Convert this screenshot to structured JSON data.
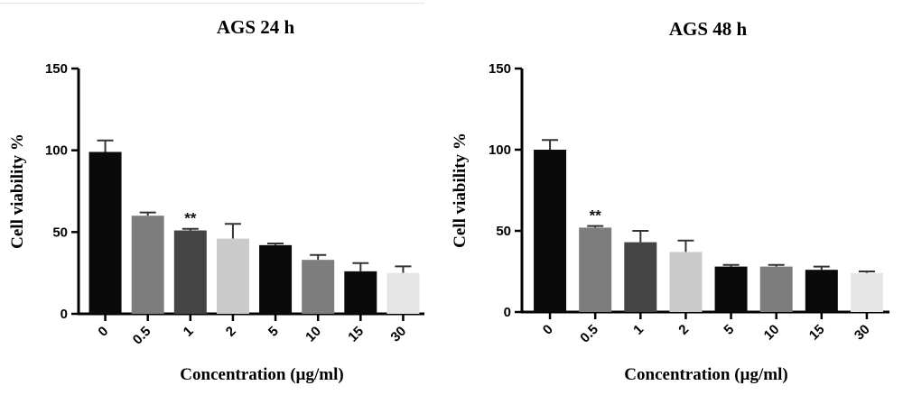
{
  "chart_data": [
    {
      "type": "bar",
      "title": "AGS 24 h",
      "xlabel": "Concentration (µg/ml)",
      "ylabel": "Cell viability %",
      "ylim": [
        0,
        150
      ],
      "yticks": [
        "0",
        "50",
        "100",
        "150"
      ],
      "categories": [
        "0",
        "0.5",
        "1",
        "2",
        "5",
        "10",
        "15",
        "30"
      ],
      "values": [
        99,
        60,
        51,
        46,
        42,
        33,
        26,
        25
      ],
      "errors": [
        7,
        2,
        1,
        9,
        1,
        3,
        5,
        4
      ],
      "colors": [
        "#0a0a0a",
        "#7d7d7d",
        "#444444",
        "#cacaca",
        "#0a0a0a",
        "#7d7d7d",
        "#0a0a0a",
        "#e6e6e6"
      ],
      "annotations": [
        {
          "category": "1",
          "text": "**"
        }
      ]
    },
    {
      "type": "bar",
      "title": "AGS 48 h",
      "xlabel": "Concentration (µg/ml)",
      "ylabel": "Cell viability %",
      "ylim": [
        0,
        150
      ],
      "yticks": [
        "0",
        "50",
        "100",
        "150"
      ],
      "categories": [
        "0",
        "0.5",
        "1",
        "2",
        "5",
        "10",
        "15",
        "30"
      ],
      "values": [
        100,
        52,
        43,
        37,
        28,
        28,
        26,
        24
      ],
      "errors": [
        6,
        1,
        7,
        7,
        1,
        1,
        2,
        1
      ],
      "colors": [
        "#0a0a0a",
        "#7d7d7d",
        "#444444",
        "#cacaca",
        "#0a0a0a",
        "#7d7d7d",
        "#0a0a0a",
        "#e6e6e6"
      ],
      "annotations": [
        {
          "category": "0.5",
          "text": "**"
        }
      ]
    }
  ]
}
